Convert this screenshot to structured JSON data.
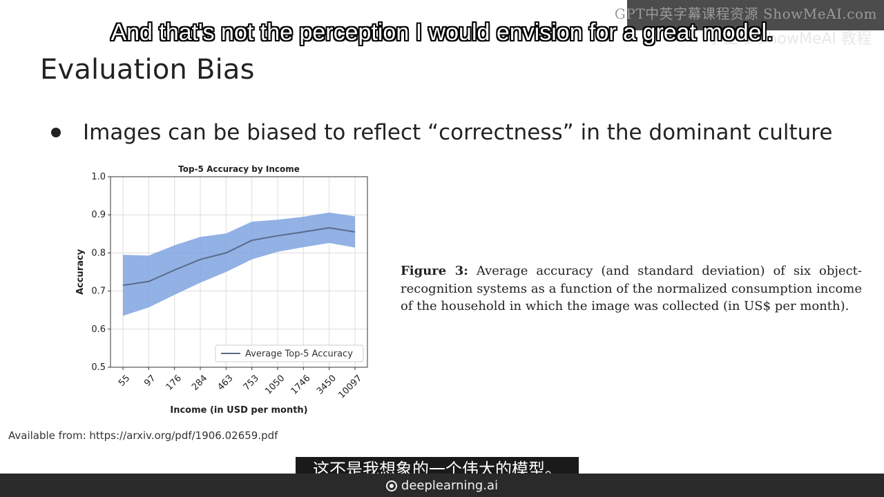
{
  "slide": {
    "title": "Evaluation Bias",
    "bullet": "Images can be biased to reflect “correctness” in the dominant culture",
    "caption_label": "Figure 3:",
    "caption_text": "Average accuracy (and standard deviation) of six object-recognition systems as a function of the normalized consumption income of the household in which the image was collected (in US$ per month).",
    "source": "Available from: https://arxiv.org/pdf/1906.02659.pdf"
  },
  "subtitles": {
    "english": "And that's not the perception I would envision for a great model.",
    "chinese": "这不是我想象的一个伟大的模型。"
  },
  "watermark": {
    "line1": "GPT中英字幕课程资源 ShowMeAI.com",
    "line2": "小土堆 ShowMeAI 教程"
  },
  "footer": {
    "brand": "deeplearning.ai"
  },
  "colors": {
    "band": "#7fa3e0",
    "line": "#5a6a8a"
  },
  "chart_data": {
    "type": "line",
    "title": "Top-5 Accuracy by Income",
    "xlabel": "Income (in USD per month)",
    "ylabel": "Accuracy",
    "categories": [
      "55",
      "97",
      "176",
      "284",
      "463",
      "753",
      "1050",
      "1746",
      "3450",
      "10097"
    ],
    "ylim": [
      0.5,
      1.0
    ],
    "yticks": [
      "0.5",
      "0.6",
      "0.7",
      "0.8",
      "0.9",
      "1.0"
    ],
    "grid": true,
    "legend_position": "lower-right",
    "series": [
      {
        "name": "Average Top-5 Accuracy",
        "values": [
          0.715,
          0.725,
          0.755,
          0.783,
          0.8,
          0.833,
          0.845,
          0.855,
          0.866,
          0.855
        ],
        "lower": [
          0.635,
          0.657,
          0.69,
          0.722,
          0.75,
          0.783,
          0.803,
          0.815,
          0.826,
          0.814
        ],
        "upper": [
          0.795,
          0.793,
          0.82,
          0.842,
          0.851,
          0.882,
          0.887,
          0.895,
          0.906,
          0.896
        ]
      }
    ]
  }
}
